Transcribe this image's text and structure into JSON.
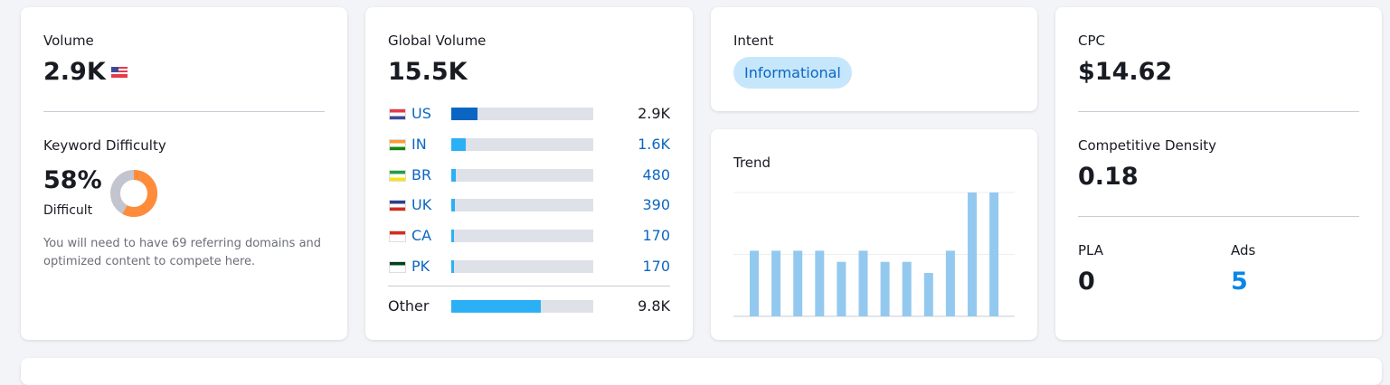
{
  "volume": {
    "label": "Volume",
    "value": "2.9K"
  },
  "keyword_difficulty": {
    "label": "Keyword Difficulty",
    "value": 58,
    "value_label": "58%",
    "level": "Difficult",
    "note": "You will need to have 69 referring domains and optimized content to compete here."
  },
  "global_volume": {
    "label": "Global Volume",
    "value": 15500,
    "value_label": "15.5K",
    "countries": [
      {
        "code": "US",
        "value": 2900,
        "value_label": "2.9K"
      },
      {
        "code": "IN",
        "value": 1600,
        "value_label": "1.6K"
      },
      {
        "code": "BR",
        "value": 480,
        "value_label": "480"
      },
      {
        "code": "UK",
        "value": 390,
        "value_label": "390"
      },
      {
        "code": "CA",
        "value": 170,
        "value_label": "170"
      },
      {
        "code": "PK",
        "value": 170,
        "value_label": "170"
      }
    ],
    "other": {
      "label": "Other",
      "value": 9800,
      "value_label": "9.8K"
    }
  },
  "intent": {
    "label": "Intent",
    "tags": [
      "Informational"
    ]
  },
  "trend": {
    "label": "Trend",
    "values": [
      0.53,
      0.53,
      0.53,
      0.53,
      0.44,
      0.53,
      0.44,
      0.44,
      0.35,
      0.53,
      1,
      1
    ],
    "ylim": [
      0,
      1
    ],
    "yticks": [
      0.5,
      1
    ]
  },
  "cpc": {
    "label": "CPC",
    "value": "$14.62"
  },
  "competitive_density": {
    "label": "Competitive Density",
    "value": "0.18"
  },
  "pla": {
    "label": "PLA",
    "value": "0"
  },
  "ads": {
    "label": "Ads",
    "value": "5"
  }
}
